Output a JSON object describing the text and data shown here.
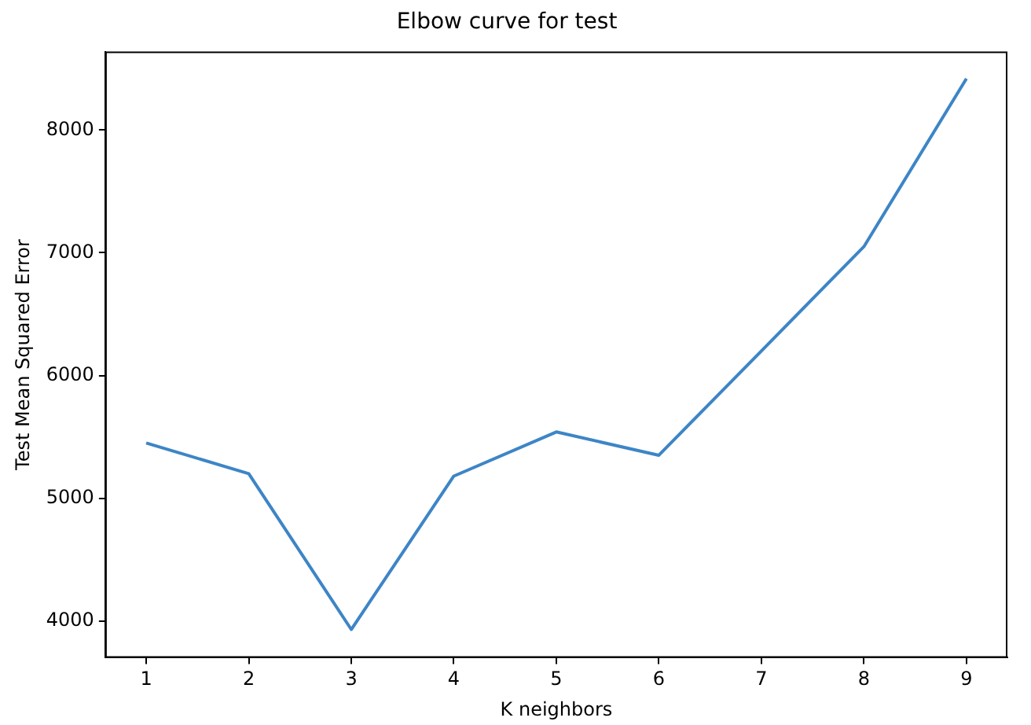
{
  "chart_data": {
    "type": "line",
    "title": "Elbow curve for test",
    "xlabel": "K neighbors",
    "ylabel": "Test Mean Squared Error",
    "x": [
      1,
      2,
      3,
      4,
      5,
      6,
      7,
      8,
      9
    ],
    "series": [
      {
        "color": "#3d85c6",
        "values": [
          5450,
          5200,
          3930,
          5180,
          5540,
          5350,
          6200,
          7050,
          8420
        ]
      }
    ],
    "xlim": [
      0.6,
      9.4
    ],
    "xticks": [
      1,
      2,
      3,
      4,
      5,
      6,
      7,
      8,
      9
    ],
    "ylim": [
      3700,
      8640
    ],
    "yticks": [
      4000,
      5000,
      6000,
      7000,
      8000
    ],
    "legend": false,
    "marker": "none",
    "line_style": "solid"
  }
}
